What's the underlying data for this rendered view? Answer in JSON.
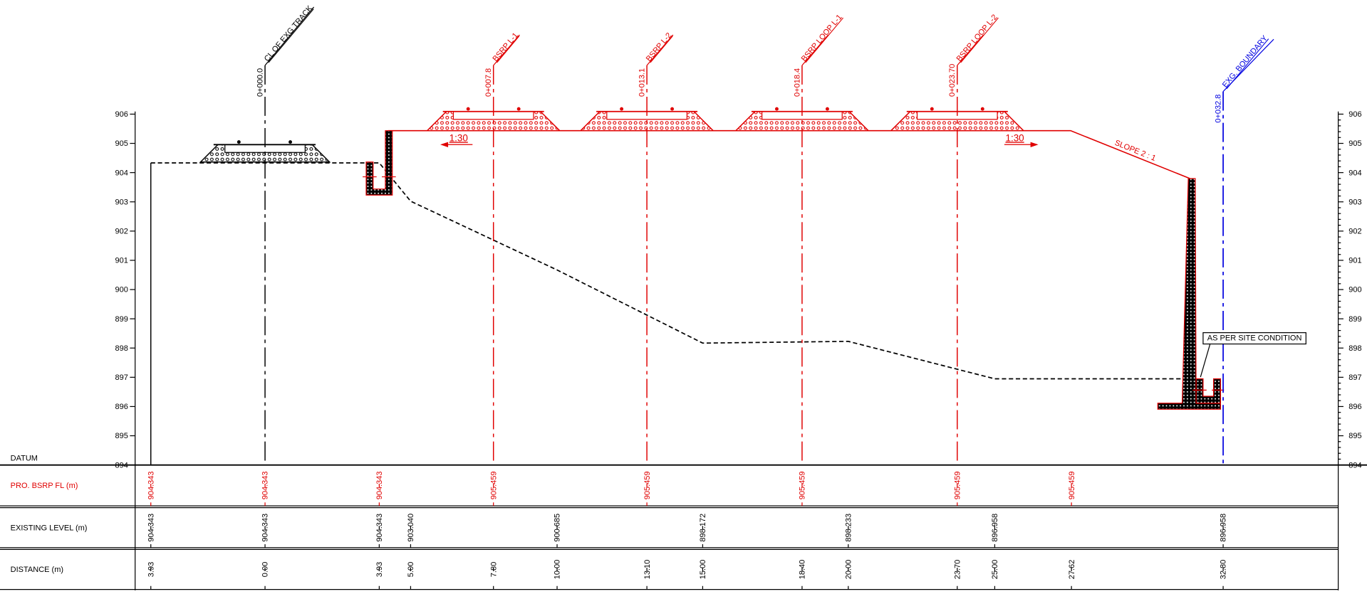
{
  "elevations": [
    "906",
    "905",
    "904",
    "903",
    "902",
    "901",
    "900",
    "899",
    "898",
    "897",
    "896",
    "895",
    "894"
  ],
  "datum": "DATUM",
  "stations": [
    {
      "chainage": "0+000.0",
      "label": "CL OF EXG TRACK"
    },
    {
      "chainage": "0+007.8",
      "label": "BSRP L-1"
    },
    {
      "chainage": "0+013.1",
      "label": "BSRP L-2"
    },
    {
      "chainage": "0+018.4",
      "label": "BSRP LOOP L-1"
    },
    {
      "chainage": "0+023.70",
      "label": "BSRP LOOP L-2"
    },
    {
      "chainage": "0+032.8",
      "label": "EXG. BOUNDARY"
    }
  ],
  "annotations": {
    "gradient_left": "1:30",
    "gradient_right": "1:30",
    "slope": "SLOPE 2 : 1",
    "note": "AS PER SITE CONDITION"
  },
  "table": {
    "rows": [
      {
        "label": "PRO. BSRP FL (m)",
        "values": [
          "904.343",
          "904.343",
          "904.343",
          "905.459",
          "905.459",
          "905.459",
          "905.459",
          "905.459"
        ]
      },
      {
        "label": "EXISTING LEVEL (m)",
        "values": [
          "904.343",
          "904.343",
          "904.343",
          "903.040",
          "900.685",
          "898.172",
          "898.233",
          "896.958",
          "896.958"
        ]
      },
      {
        "label": "DISTANCE (m)",
        "values": [
          "3.93",
          "0.00",
          "3.93",
          "5.00",
          "7.80",
          "10.00",
          "13.10",
          "15.00",
          "18.40",
          "20.00",
          "23.70",
          "25.00",
          "27.62",
          "32.80"
        ]
      }
    ]
  }
}
